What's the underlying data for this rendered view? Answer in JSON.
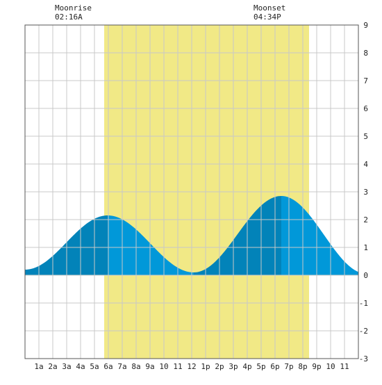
{
  "moonrise": {
    "label": "Moonrise",
    "time": "02:16A"
  },
  "moonset": {
    "label": "Moonset",
    "time": "04:34P"
  },
  "colors": {
    "daylight": "#f1e986",
    "tide_dark": "#0283b9",
    "tide_light": "#0198d9",
    "grid": "#c8c8c8",
    "border": "#555555"
  },
  "chart_data": {
    "type": "area",
    "xlabel": "",
    "ylabel": "",
    "xlim": [
      0,
      24
    ],
    "ylim": [
      -3,
      9
    ],
    "x_tick_labels": [
      {
        "x": 1,
        "label": "1a"
      },
      {
        "x": 2,
        "label": "2a"
      },
      {
        "x": 3,
        "label": "3a"
      },
      {
        "x": 4,
        "label": "4a"
      },
      {
        "x": 5,
        "label": "5a"
      },
      {
        "x": 6,
        "label": "6a"
      },
      {
        "x": 7,
        "label": "7a"
      },
      {
        "x": 8,
        "label": "8a"
      },
      {
        "x": 9,
        "label": "9a"
      },
      {
        "x": 10,
        "label": "10"
      },
      {
        "x": 11,
        "label": "11"
      },
      {
        "x": 12,
        "label": "12"
      },
      {
        "x": 13,
        "label": "1p"
      },
      {
        "x": 14,
        "label": "2p"
      },
      {
        "x": 15,
        "label": "3p"
      },
      {
        "x": 16,
        "label": "4p"
      },
      {
        "x": 17,
        "label": "5p"
      },
      {
        "x": 18,
        "label": "6p"
      },
      {
        "x": 19,
        "label": "7p"
      },
      {
        "x": 20,
        "label": "8p"
      },
      {
        "x": 21,
        "label": "9p"
      },
      {
        "x": 22,
        "label": "10"
      },
      {
        "x": 23,
        "label": "11"
      }
    ],
    "y_ticks": [
      -3,
      -2,
      -1,
      0,
      1,
      2,
      3,
      4,
      5,
      6,
      7,
      8,
      9
    ],
    "daylight": {
      "start": 5.7,
      "end": 20.45
    },
    "extremes": [
      {
        "type": "low",
        "x": 0.0,
        "y": 0.2
      },
      {
        "type": "high",
        "x": 5.95,
        "y": 2.15
      },
      {
        "type": "low",
        "x": 12.15,
        "y": 0.1
      },
      {
        "type": "high",
        "x": 18.45,
        "y": 2.85
      },
      {
        "type": "low",
        "x": 24.6,
        "y": 0.05
      }
    ],
    "grid": true
  }
}
